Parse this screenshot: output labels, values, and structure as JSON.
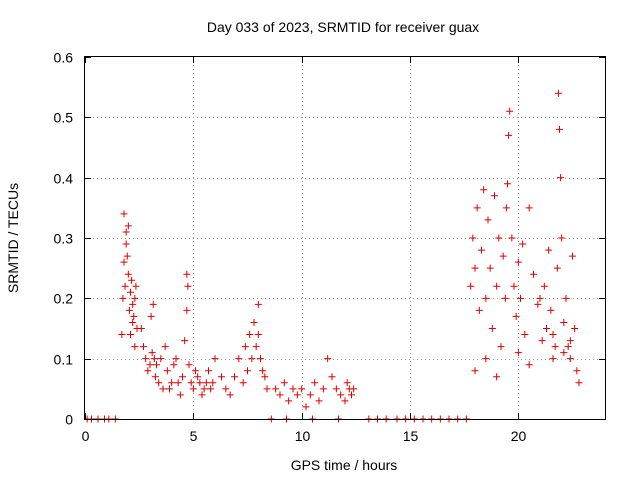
{
  "chart_data": {
    "type": "scatter",
    "title": "Day 033 of 2023, SRMTID for receiver guax",
    "xlabel": "GPS time / hours",
    "ylabel": "SRMTID / TECUs",
    "xlim": [
      0,
      24
    ],
    "ylim": [
      0,
      0.6
    ],
    "xticks": [
      0,
      5,
      10,
      15,
      20
    ],
    "yticks": [
      0,
      0.1,
      0.2,
      0.3,
      0.4,
      0.5,
      0.6
    ],
    "xtick_labels": [
      "0",
      "5",
      "10",
      "15",
      "20"
    ],
    "ytick_labels": [
      "0",
      "0.1",
      "0.2",
      "0.3",
      "0.4",
      "0.5",
      "0.6"
    ],
    "grid": true,
    "marker": "plus",
    "color": "#e00000",
    "series": [
      {
        "name": "SRMTID",
        "x": [
          0.1,
          0.3,
          0.6,
          0.9,
          1.1,
          1.4,
          1.7,
          1.75,
          1.8,
          1.8,
          1.85,
          1.9,
          1.9,
          1.95,
          2.0,
          2.0,
          2.05,
          2.1,
          2.1,
          2.15,
          2.2,
          2.2,
          2.25,
          2.3,
          2.3,
          2.35,
          2.4,
          2.6,
          2.7,
          2.8,
          2.9,
          3.0,
          3.05,
          3.1,
          3.15,
          3.2,
          3.25,
          3.3,
          3.4,
          3.5,
          3.6,
          3.7,
          3.8,
          3.9,
          4.0,
          4.1,
          4.2,
          4.3,
          4.4,
          4.5,
          4.6,
          4.7,
          4.7,
          4.75,
          4.8,
          4.9,
          5.0,
          5.1,
          5.2,
          5.3,
          5.4,
          5.5,
          5.6,
          5.7,
          5.8,
          5.9,
          6.0,
          6.3,
          6.5,
          6.7,
          6.9,
          7.1,
          7.3,
          7.4,
          7.5,
          7.6,
          7.7,
          7.8,
          7.9,
          8.0,
          8.0,
          8.1,
          8.2,
          8.3,
          8.4,
          8.8,
          9.0,
          9.2,
          9.4,
          9.6,
          9.8,
          10.0,
          10.2,
          10.4,
          10.6,
          10.8,
          11.0,
          11.2,
          11.4,
          11.6,
          11.8,
          12.0,
          12.1,
          12.2,
          12.3,
          12.4,
          8.6,
          9.3,
          10.5,
          11.7,
          13.1,
          13.5,
          13.9,
          14.4,
          14.8,
          15.2,
          15.6,
          16.0,
          16.4,
          16.8,
          17.2,
          17.6,
          17.8,
          17.9,
          18.0,
          18.1,
          18.2,
          18.3,
          18.4,
          18.5,
          18.6,
          18.7,
          18.8,
          18.9,
          19.0,
          19.1,
          19.2,
          19.3,
          19.4,
          19.45,
          19.5,
          19.55,
          19.6,
          19.7,
          19.8,
          19.9,
          20.0,
          20.1,
          20.2,
          20.3,
          20.5,
          20.7,
          20.9,
          21.0,
          21.2,
          21.4,
          21.5,
          21.6,
          21.7,
          21.8,
          21.85,
          21.9,
          21.95,
          22.0,
          22.1,
          22.2,
          22.3,
          22.4,
          22.5,
          22.6,
          22.7,
          22.8,
          18.0,
          18.5,
          19.0,
          20.0,
          20.5,
          21.1,
          21.3,
          21.6,
          22.1,
          22.4
        ],
        "y": [
          0,
          0,
          0,
          0,
          0,
          0,
          0.14,
          0.2,
          0.26,
          0.34,
          0.22,
          0.29,
          0.31,
          0.27,
          0.24,
          0.32,
          0.18,
          0.21,
          0.14,
          0.23,
          0.19,
          0.16,
          0.17,
          0.2,
          0.12,
          0.22,
          0.15,
          0.15,
          0.12,
          0.1,
          0.08,
          0.09,
          0.17,
          0.11,
          0.19,
          0.1,
          0.07,
          0.09,
          0.06,
          0.1,
          0.05,
          0.12,
          0.08,
          0.05,
          0.06,
          0.09,
          0.1,
          0.06,
          0.04,
          0.07,
          0.13,
          0.18,
          0.24,
          0.22,
          0.09,
          0.06,
          0.05,
          0.08,
          0.07,
          0.06,
          0.04,
          0.05,
          0.06,
          0.08,
          0.05,
          0.06,
          0.1,
          0.07,
          0.05,
          0.04,
          0.07,
          0.1,
          0.06,
          0.12,
          0.08,
          0.14,
          0.1,
          0.16,
          0.12,
          0.19,
          0.14,
          0.1,
          0.08,
          0.07,
          0.05,
          0.05,
          0.04,
          0.06,
          0.03,
          0.05,
          0.04,
          0.05,
          0.02,
          0.04,
          0.06,
          0.03,
          0.05,
          0.1,
          0.07,
          0.05,
          0.04,
          0.03,
          0.06,
          0.05,
          0.04,
          0.05,
          0,
          0,
          0,
          0,
          0,
          0,
          0,
          0,
          0,
          0,
          0,
          0,
          0,
          0,
          0,
          0,
          0.22,
          0.3,
          0.25,
          0.35,
          0.18,
          0.28,
          0.38,
          0.2,
          0.33,
          0.25,
          0.15,
          0.37,
          0.22,
          0.3,
          0.12,
          0.27,
          0.2,
          0.35,
          0.39,
          0.47,
          0.51,
          0.3,
          0.22,
          0.17,
          0.26,
          0.2,
          0.29,
          0.14,
          0.35,
          0.24,
          0.19,
          0.2,
          0.22,
          0.28,
          0.18,
          0.14,
          0.12,
          0.25,
          0.54,
          0.48,
          0.4,
          0.3,
          0.16,
          0.2,
          0.12,
          0.1,
          0.27,
          0.15,
          0.08,
          0.06,
          0.08,
          0.1,
          0.07,
          0.11,
          0.09,
          0.13,
          0.15,
          0.1,
          0.11,
          0.13
        ]
      }
    ]
  }
}
